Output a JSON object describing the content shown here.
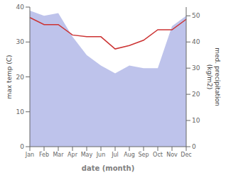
{
  "chart_data": {
    "type": "line",
    "xlabel": "date (month)",
    "ylabel": "max temp (C)",
    "y2label": "med. precipitation\n(kg/m2)",
    "categories": [
      "Jan",
      "Feb",
      "Mar",
      "Apr",
      "May",
      "Jun",
      "Jul",
      "Aug",
      "Sep",
      "Oct",
      "Nov",
      "Dec"
    ],
    "series": [
      {
        "type": "area",
        "axis": "y2",
        "color": "#b3b9e8",
        "values": [
          52,
          50,
          51,
          42,
          35,
          31,
          28,
          31,
          30,
          30,
          46,
          50
        ]
      },
      {
        "type": "line",
        "color": "#cc3333",
        "values": [
          37,
          35,
          35,
          32,
          31.5,
          31.5,
          28,
          29,
          30.5,
          33.5,
          33.5,
          36.5
        ]
      }
    ],
    "ylim": [
      0,
      40
    ],
    "yticks": [
      0,
      10,
      20,
      30,
      40
    ],
    "y2lim": [
      0,
      53.33
    ],
    "y2ticks": [
      0,
      10,
      20,
      30,
      40,
      50
    ]
  }
}
